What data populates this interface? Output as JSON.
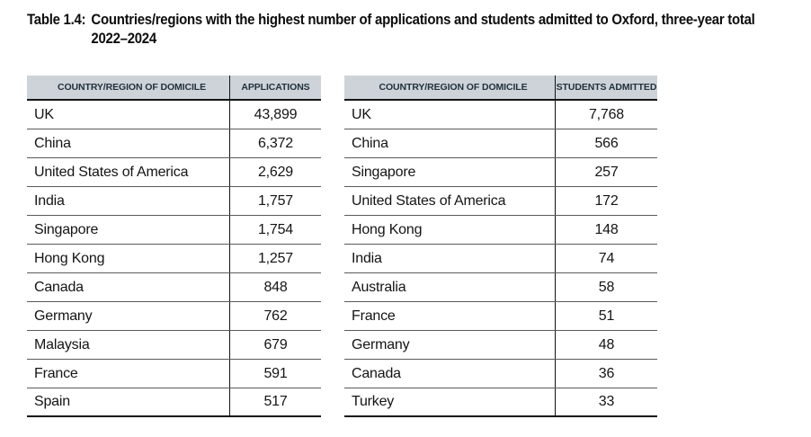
{
  "title": {
    "label": "Table 1.4:",
    "line1": "Countries/regions with the highest number of applications and students admitted to Oxford, three-year total",
    "line2": "2022–2024",
    "full_text": "Table 1.4: Countries/regions with the highest number of applications and students admitted to Oxford, three-year total 2022–2024"
  },
  "tables": {
    "left": {
      "headers": {
        "country": "COUNTRY/REGION OF DOMICILE",
        "value": "APPLICATIONS"
      },
      "rows": [
        {
          "country": "UK",
          "value": "43,899"
        },
        {
          "country": "China",
          "value": "6,372"
        },
        {
          "country": "United States of America",
          "value": "2,629"
        },
        {
          "country": "India",
          "value": "1,757"
        },
        {
          "country": "Singapore",
          "value": "1,754"
        },
        {
          "country": "Hong Kong",
          "value": "1,257"
        },
        {
          "country": "Canada",
          "value": "848"
        },
        {
          "country": "Germany",
          "value": "762"
        },
        {
          "country": "Malaysia",
          "value": "679"
        },
        {
          "country": "France",
          "value": "591"
        },
        {
          "country": "Spain",
          "value": "517"
        }
      ]
    },
    "right": {
      "headers": {
        "country": "COUNTRY/REGION OF DOMICILE",
        "value": "STUDENTS ADMITTED"
      },
      "rows": [
        {
          "country": "UK",
          "value": "7,768"
        },
        {
          "country": "China",
          "value": "566"
        },
        {
          "country": "Singapore",
          "value": "257"
        },
        {
          "country": "United States of America",
          "value": "172"
        },
        {
          "country": "Hong Kong",
          "value": "148"
        },
        {
          "country": "India",
          "value": "74"
        },
        {
          "country": "Australia",
          "value": "58"
        },
        {
          "country": "France",
          "value": "51"
        },
        {
          "country": "Germany",
          "value": "48"
        },
        {
          "country": "Canada",
          "value": "36"
        },
        {
          "country": "Turkey",
          "value": "33"
        }
      ]
    }
  },
  "colors": {
    "page_background": "#ffffff",
    "header_background": "#cdd3d9",
    "header_text": "#22303e",
    "body_text": "#141414",
    "rule_dark": "#141414",
    "rule_light": "#5a5a5a"
  }
}
